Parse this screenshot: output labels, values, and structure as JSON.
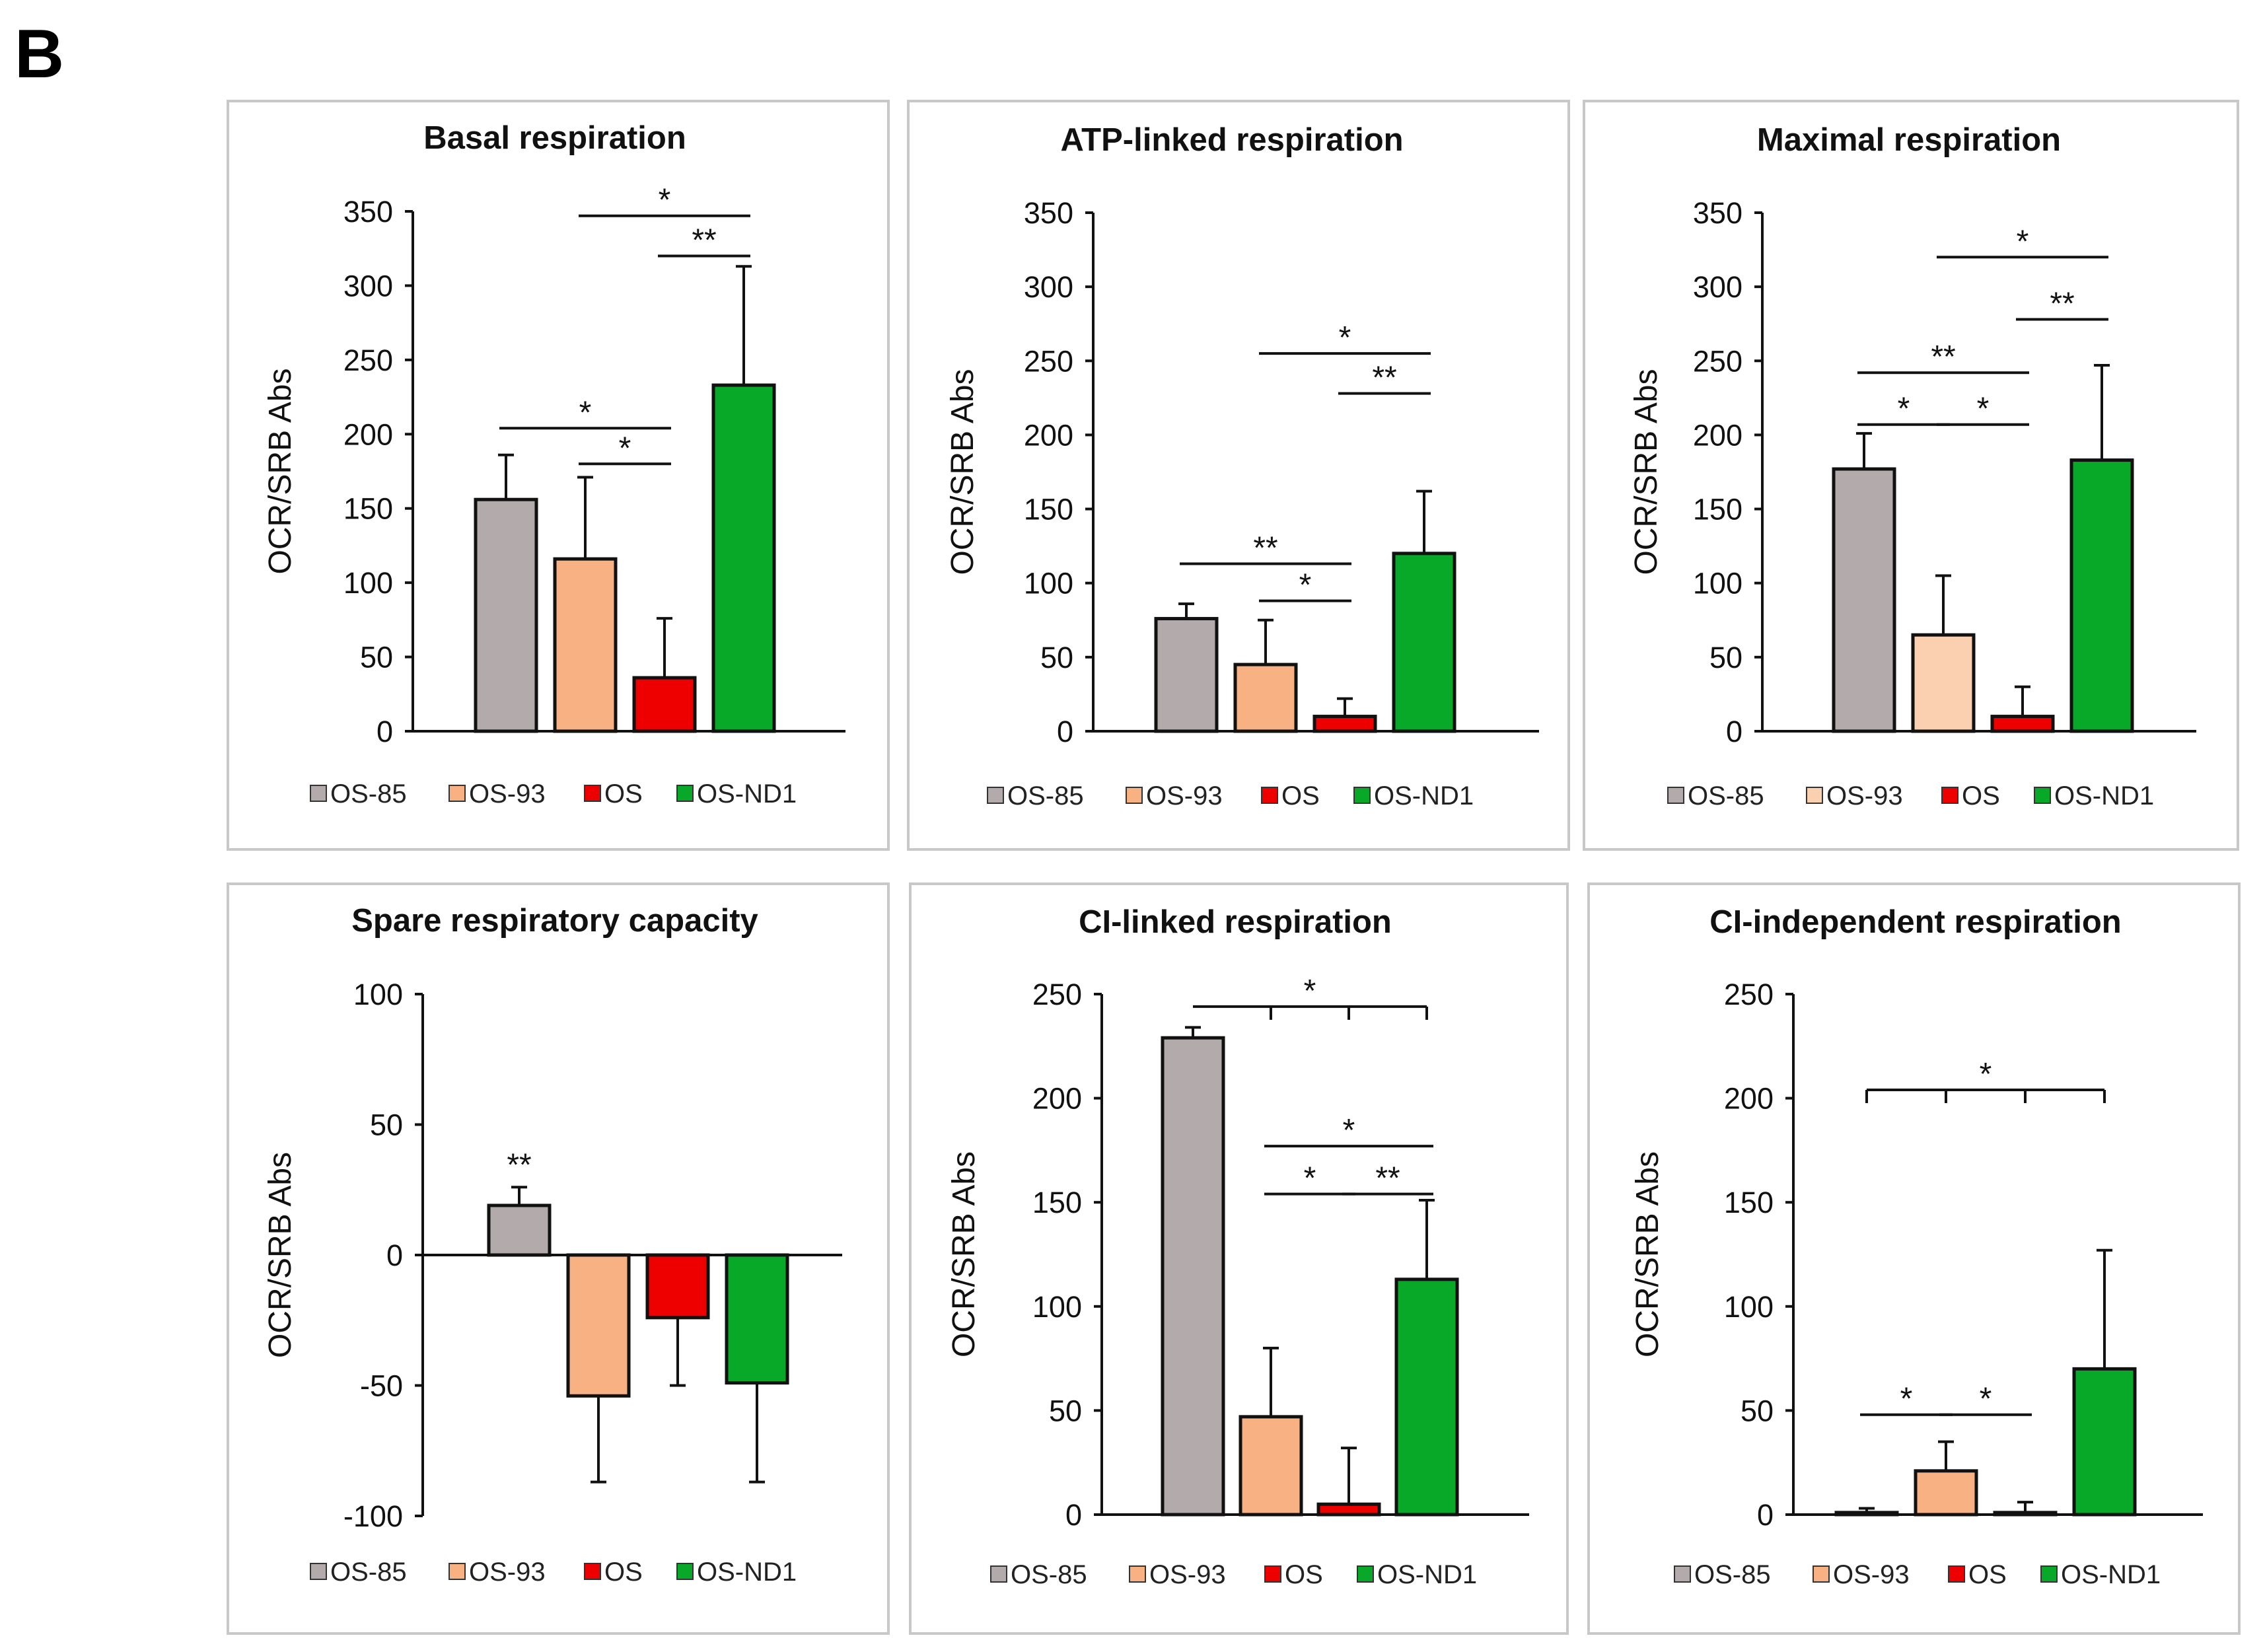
{
  "figure": {
    "panel_label": "B"
  },
  "colors": {
    "OS-85": "#b3abab",
    "OS-93": "#f8b183",
    "OS": "#ee0000",
    "OS-ND1": "#08a828",
    "OS-93-light": "#fbd0b0"
  },
  "chart_data": [
    {
      "id": "basal",
      "type": "bar",
      "title": "Basal respiration",
      "ylabel": "OCR/SRB Abs",
      "xlabel": "",
      "ylim": [
        0,
        350
      ],
      "yticks": [
        0,
        50,
        100,
        150,
        200,
        250,
        300,
        350
      ],
      "categories": [
        "OS-85",
        "OS-93",
        "OS",
        "OS-ND1"
      ],
      "values": [
        156,
        116,
        36,
        233
      ],
      "errors": [
        30,
        55,
        40,
        80
      ],
      "legend": [
        "OS-85",
        "OS-93",
        "OS",
        "OS-ND1"
      ],
      "legend_position": "bottom",
      "significance": [
        {
          "from": 0,
          "to": 2,
          "level": 204,
          "label": "*"
        },
        {
          "from": 1,
          "to": 2,
          "level": 180,
          "label": "*"
        },
        {
          "from": 1,
          "to": 3,
          "level": 347,
          "label": "*"
        },
        {
          "from": 2,
          "to": 3,
          "level": 320,
          "label": "**"
        }
      ]
    },
    {
      "id": "atp",
      "type": "bar",
      "title": "ATP-linked respiration",
      "ylabel": "OCR/SRB Abs",
      "xlabel": "",
      "ylim": [
        0,
        350
      ],
      "yticks": [
        0,
        50,
        100,
        150,
        200,
        250,
        300,
        350
      ],
      "categories": [
        "OS-85",
        "OS-93",
        "OS",
        "OS-ND1"
      ],
      "values": [
        76,
        45,
        10,
        120
      ],
      "errors": [
        10,
        30,
        12,
        42
      ],
      "legend": [
        "OS-85",
        "OS-93",
        "OS",
        "OS-ND1"
      ],
      "legend_position": "bottom",
      "significance": [
        {
          "from": 0,
          "to": 2,
          "level": 113,
          "label": "**"
        },
        {
          "from": 1,
          "to": 2,
          "level": 88,
          "label": "*"
        },
        {
          "from": 1,
          "to": 3,
          "level": 255,
          "label": "*"
        },
        {
          "from": 2,
          "to": 3,
          "level": 228,
          "label": "**"
        }
      ]
    },
    {
      "id": "maximal",
      "type": "bar",
      "title": "Maximal respiration",
      "ylabel": "OCR/SRB Abs",
      "xlabel": "",
      "ylim": [
        0,
        350
      ],
      "yticks": [
        0,
        50,
        100,
        150,
        200,
        250,
        300,
        350
      ],
      "categories": [
        "OS-85",
        "OS-93",
        "OS",
        "OS-ND1"
      ],
      "values": [
        177,
        65,
        10,
        183
      ],
      "errors": [
        24,
        40,
        20,
        64
      ],
      "colors_override": {
        "OS-93": "#fbd0b0"
      },
      "legend": [
        "OS-85",
        "OS-93",
        "OS",
        "OS-ND1"
      ],
      "legend_position": "bottom",
      "significance": [
        {
          "from": 0,
          "to": 1,
          "level": 207,
          "label": "*"
        },
        {
          "from": 0,
          "to": 2,
          "level": 242,
          "label": "**"
        },
        {
          "from": 1,
          "to": 2,
          "level": 207,
          "label": "*"
        },
        {
          "from": 1,
          "to": 3,
          "level": 320,
          "label": "*"
        },
        {
          "from": 2,
          "to": 3,
          "level": 278,
          "label": "**"
        }
      ]
    },
    {
      "id": "spare",
      "type": "bar",
      "title": "Spare respiratory capacity",
      "ylabel": "OCR/SRB Abs",
      "xlabel": "",
      "ylim": [
        -100,
        100
      ],
      "yticks": [
        -100,
        -50,
        0,
        50,
        100
      ],
      "categories": [
        "OS-85",
        "OS-93",
        "OS",
        "OS-ND1"
      ],
      "values": [
        19,
        -54,
        -24,
        -49
      ],
      "errors": [
        7,
        33,
        26,
        38
      ],
      "legend": [
        "OS-85",
        "OS-93",
        "OS",
        "OS-ND1"
      ],
      "legend_position": "bottom",
      "bar_annotations": [
        {
          "index": 0,
          "label": "**"
        }
      ],
      "significance": []
    },
    {
      "id": "ci-linked",
      "type": "bar",
      "title": "CI-linked respiration",
      "ylabel": "OCR/SRB Abs",
      "xlabel": "",
      "ylim": [
        0,
        250
      ],
      "yticks": [
        0,
        50,
        100,
        150,
        200,
        250
      ],
      "categories": [
        "OS-85",
        "OS-93",
        "OS",
        "OS-ND1"
      ],
      "values": [
        229,
        47,
        5,
        113
      ],
      "errors": [
        5,
        33,
        27,
        38
      ],
      "legend": [
        "OS-85",
        "OS-93",
        "OS",
        "OS-ND1"
      ],
      "legend_position": "bottom",
      "significance": [
        {
          "from": 0,
          "to": 3,
          "level": 244,
          "label": "*",
          "ticks_at": [
            1,
            2,
            3
          ]
        },
        {
          "from": 1,
          "to": 3,
          "level": 177,
          "label": "*"
        },
        {
          "from": 1,
          "to": 2,
          "level": 154,
          "label": "*"
        },
        {
          "from": 2,
          "to": 3,
          "level": 154,
          "label": "**"
        }
      ]
    },
    {
      "id": "ci-independent",
      "type": "bar",
      "title": "CI-independent respiration",
      "ylabel": "OCR/SRB Abs",
      "xlabel": "",
      "ylim": [
        0,
        250
      ],
      "yticks": [
        0,
        50,
        100,
        150,
        200,
        250
      ],
      "categories": [
        "OS-85",
        "OS-93",
        "OS",
        "OS-ND1"
      ],
      "values": [
        1,
        21,
        1,
        70
      ],
      "errors": [
        2,
        14,
        5,
        57
      ],
      "legend": [
        "OS-85",
        "OS-93",
        "OS",
        "OS-ND1"
      ],
      "legend_position": "bottom",
      "significance": [
        {
          "from": 0,
          "to": 3,
          "level": 204,
          "label": "*",
          "ticks_at": [
            0,
            1,
            2,
            3
          ]
        },
        {
          "from": 0,
          "to": 1,
          "level": 48,
          "label": "*"
        },
        {
          "from": 1,
          "to": 2,
          "level": 48,
          "label": "*"
        }
      ]
    }
  ]
}
